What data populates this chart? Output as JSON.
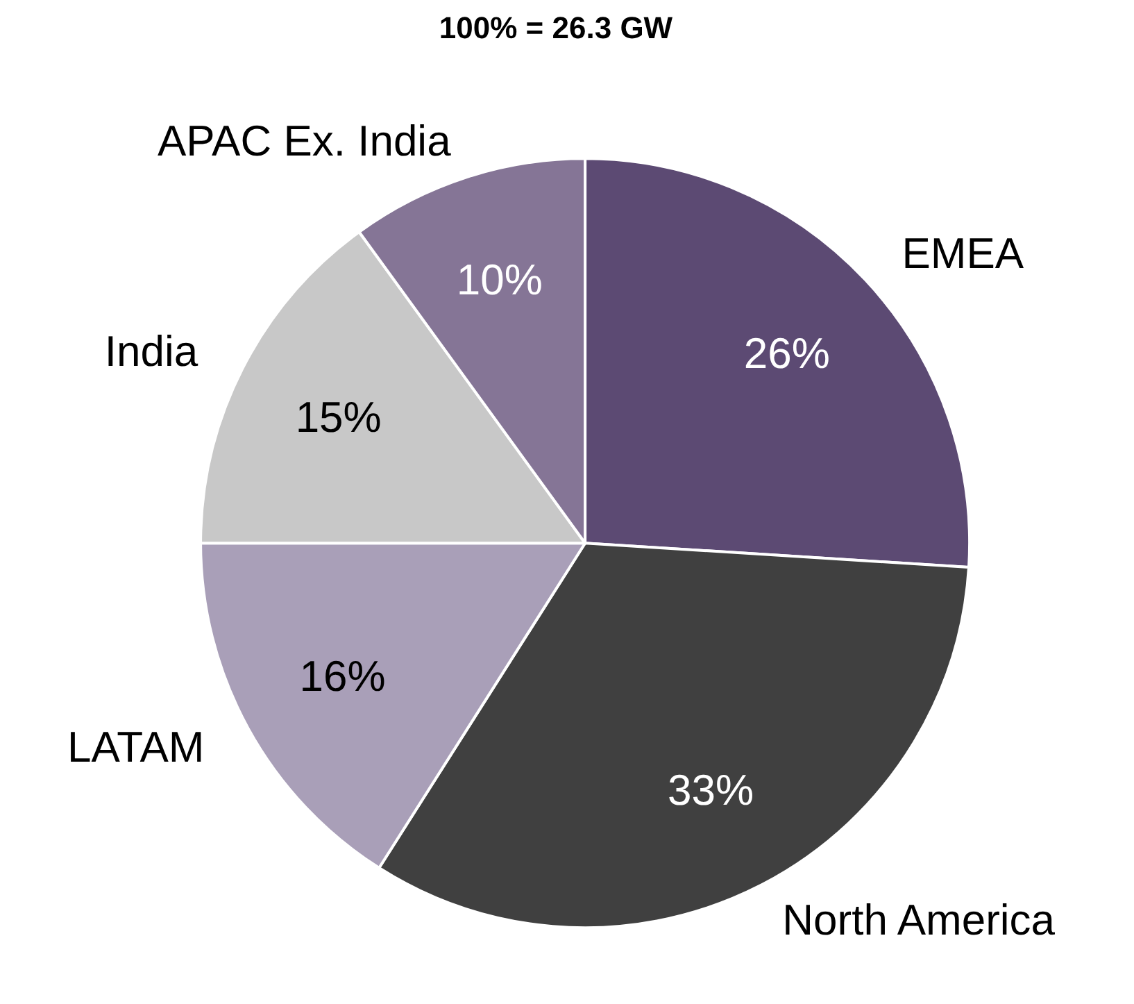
{
  "chart_data": {
    "type": "pie",
    "title": "100% = 26.3 GW",
    "categories": [
      "EMEA",
      "North America",
      "LATAM",
      "India",
      "APAC Ex. India"
    ],
    "values": [
      26,
      33,
      16,
      15,
      10
    ],
    "colors": [
      "#5c4a73",
      "#404040",
      "#a99fb8",
      "#c8c8c8",
      "#857596"
    ],
    "value_labels": [
      "26%",
      "33%",
      "16%",
      "15%",
      "10%"
    ]
  }
}
